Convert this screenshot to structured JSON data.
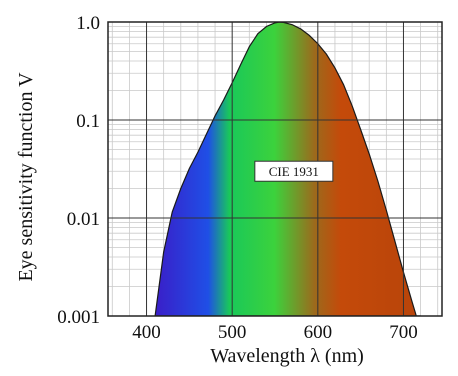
{
  "chart_data": {
    "type": "area",
    "title": "",
    "xlabel": "Wavelength λ (nm)",
    "ylabel": "Eye sensitivity function V",
    "xlim": [
      355,
      745
    ],
    "ylim": [
      0.001,
      1.0
    ],
    "y_scale": "log",
    "grid": true,
    "x_ticks": [
      {
        "value": 400,
        "label": "400"
      },
      {
        "value": 500,
        "label": "500"
      },
      {
        "value": 600,
        "label": "600"
      },
      {
        "value": 700,
        "label": "700"
      }
    ],
    "y_ticks": [
      {
        "value": 0.001,
        "label": "0.001"
      },
      {
        "value": 0.01,
        "label": "0.01"
      },
      {
        "value": 0.1,
        "label": "0.1"
      },
      {
        "value": 1.0,
        "label": "1.0"
      }
    ],
    "series": [
      {
        "name": "CIE 1931",
        "x": [
          410,
          420,
          430,
          440,
          450,
          460,
          470,
          480,
          490,
          500,
          510,
          520,
          530,
          540,
          550,
          555,
          560,
          570,
          580,
          590,
          600,
          610,
          620,
          630,
          640,
          650,
          660,
          670,
          680,
          690,
          700,
          710,
          715,
          720
        ],
        "y": [
          0.001,
          0.0045,
          0.0115,
          0.02,
          0.032,
          0.047,
          0.072,
          0.11,
          0.16,
          0.24,
          0.37,
          0.56,
          0.76,
          0.9,
          0.98,
          1.0,
          0.99,
          0.94,
          0.85,
          0.73,
          0.6,
          0.47,
          0.34,
          0.23,
          0.14,
          0.08,
          0.045,
          0.024,
          0.012,
          0.0058,
          0.0028,
          0.0014,
          0.001,
          0.001
        ]
      }
    ],
    "annotations": [
      {
        "text": "CIE 1931",
        "x": 572,
        "y": 0.03
      }
    ],
    "gradient_colors": [
      "#3a1ec8",
      "#1f4fe6",
      "#19c85a",
      "#3cd23c",
      "#9c6a1c",
      "#c44a0a",
      "#b8440a"
    ]
  }
}
